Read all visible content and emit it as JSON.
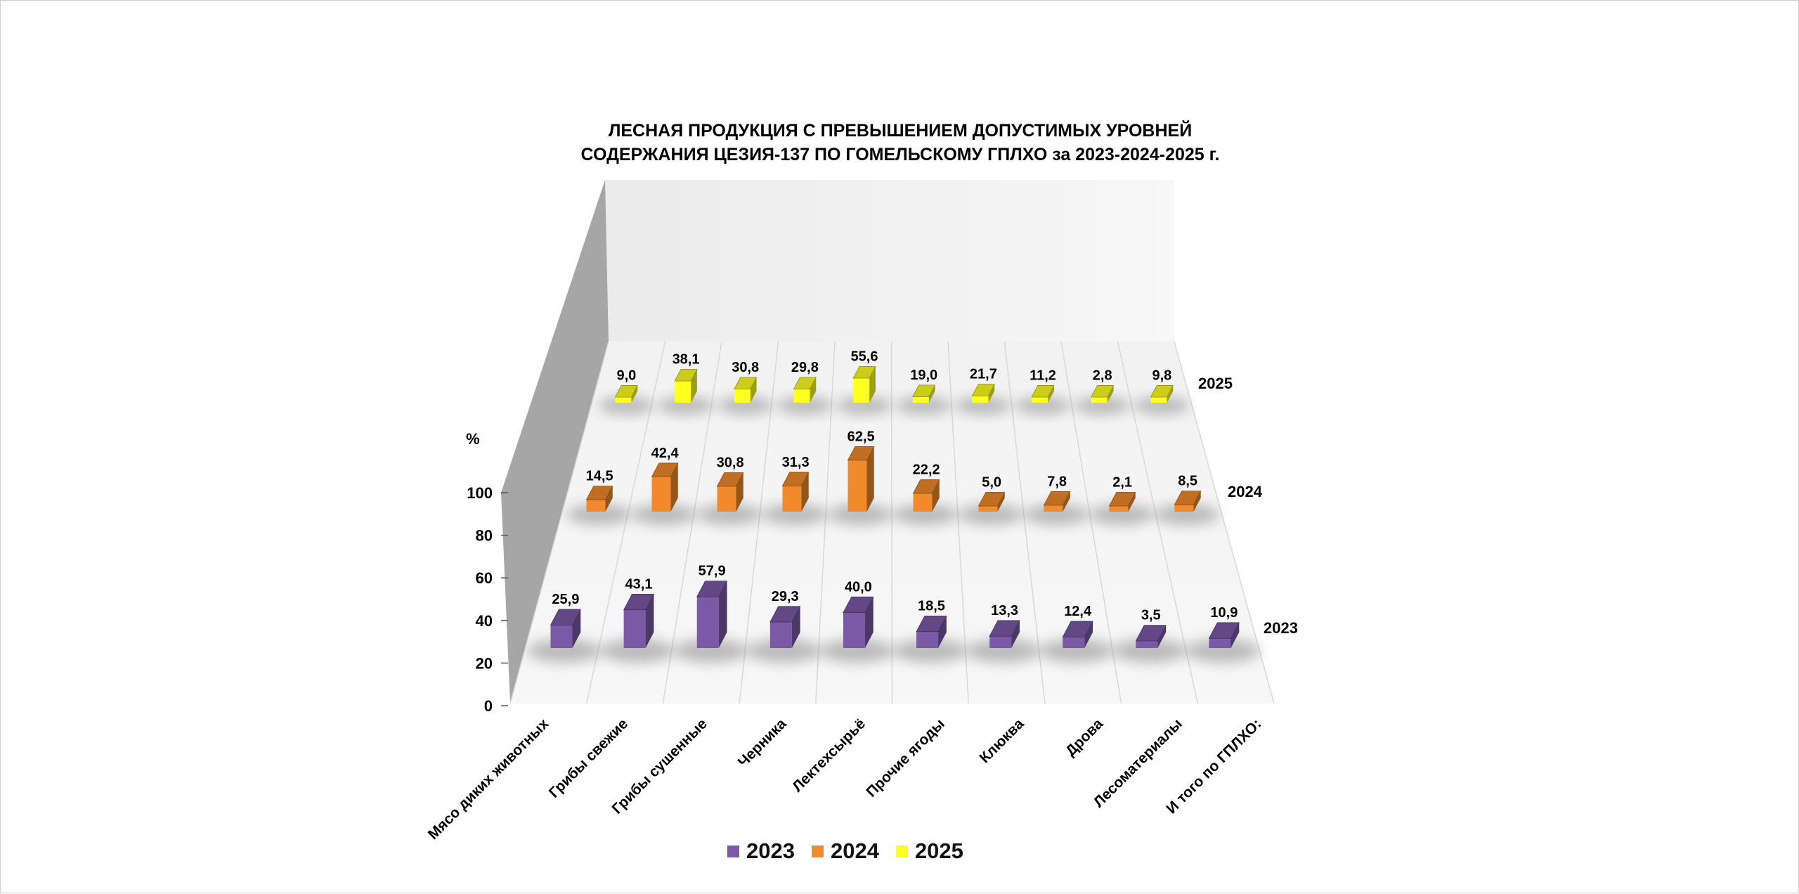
{
  "chart_data": {
    "type": "bar",
    "title_line1": "ЛЕСНАЯ ПРОДУКЦИЯ С ПРЕВЫШЕНИЕМ ДОПУСТИМЫХ УРОВНЕЙ",
    "title_line2": "СОДЕРЖАНИЯ ЦЕЗИЯ-137 ПО ГОМЕЛЬСКОМУ ГПЛХО за 2023-2024-2025 г.",
    "ylabel": "%",
    "ylim": [
      0,
      100
    ],
    "yticks": [
      "0",
      "20",
      "40",
      "60",
      "80",
      "100"
    ],
    "categories": [
      "Мясо диких животных",
      "Грибы свежие",
      "Грибы сушенные",
      "Черника",
      "Лектехсырьё",
      "Прочие ягоды",
      "Клюква",
      "Дрова",
      "Лесоматериалы",
      "И того по ГПЛХО:"
    ],
    "series": [
      {
        "name": "2023",
        "color": "#7a5aa6",
        "values": [
          25.9,
          43.1,
          57.9,
          29.3,
          40.0,
          18.5,
          13.3,
          12.4,
          3.5,
          10.9
        ],
        "labels": [
          "25,9",
          "43,1",
          "57,9",
          "29,3",
          "40,0",
          "18,5",
          "13,3",
          "12,4",
          "3,5",
          "10,9"
        ]
      },
      {
        "name": "2024",
        "color": "#f08a2c",
        "values": [
          14.5,
          42.4,
          30.8,
          31.3,
          62.5,
          22.2,
          5.0,
          7.8,
          2.1,
          8.5
        ],
        "labels": [
          "14,5",
          "42,4",
          "30,8",
          "31,3",
          "62,5",
          "22,2",
          "5,0",
          "7,8",
          "2,1",
          "8,5"
        ]
      },
      {
        "name": "2025",
        "color": "#ffff22",
        "values": [
          9.0,
          38.1,
          30.8,
          29.8,
          55.6,
          19.0,
          21.7,
          11.2,
          2.8,
          9.8
        ],
        "labels": [
          "9,0",
          "38,1",
          "30,8",
          "29,8",
          "55,6",
          "19,0",
          "21,7",
          "11,2",
          "2,8",
          "9,8"
        ]
      }
    ],
    "legend": [
      "2023",
      "2024",
      "2025"
    ],
    "grid": true
  }
}
